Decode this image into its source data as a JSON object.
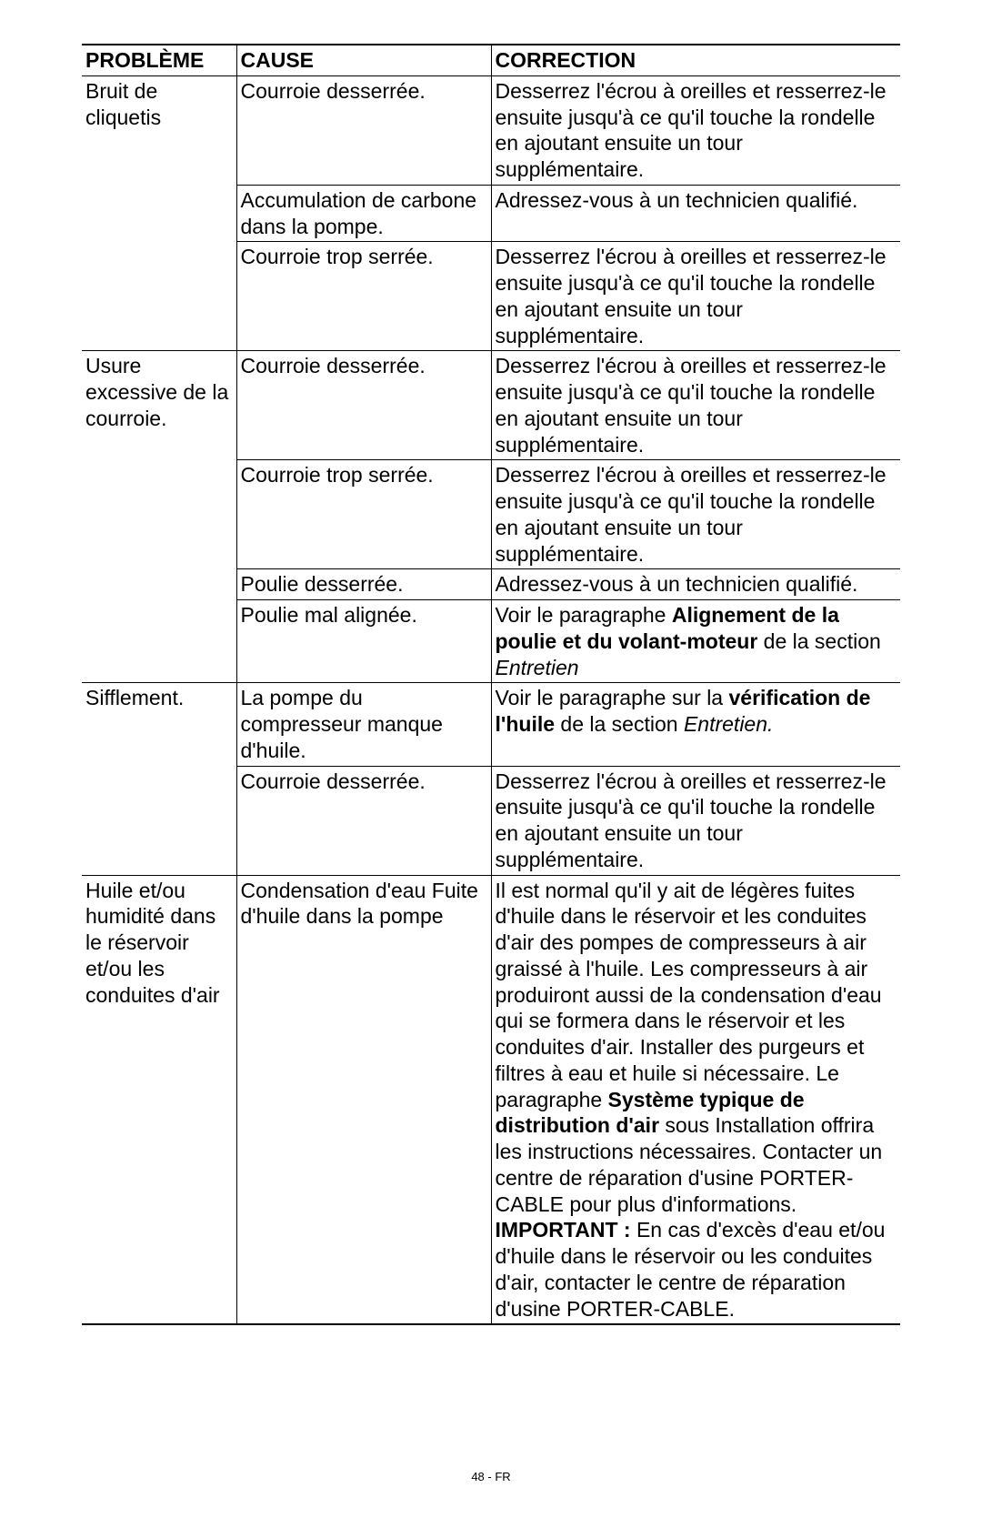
{
  "headers": {
    "problem": "PROBLÈME",
    "cause": "CAUSE",
    "correction": "CORRECTION"
  },
  "footer": "48 - FR",
  "rows": {
    "r1": {
      "problem": "Bruit de cliquetis",
      "cause": "Courroie desserrée.",
      "correction": "Desserrez l'écrou à oreilles et resserrez-le ensuite jusqu'à ce qu'il touche la rondelle en ajoutant ensuite un tour supplémentaire."
    },
    "r2": {
      "cause": "Accumulation de carbone dans la pompe.",
      "correction": "Adressez-vous à un technicien qualifié."
    },
    "r3": {
      "cause": "Courroie trop serrée.",
      "correction": "Desserrez l'écrou à oreilles et resserrez-le ensuite jusqu'à ce qu'il touche la rondelle en ajoutant ensuite un tour supplémentaire."
    },
    "r4": {
      "problem": "Usure excessive de la courroie.",
      "cause": "Courroie desserrée.",
      "correction": "Desserrez l'écrou à oreilles et resserrez-le ensuite jusqu'à ce qu'il touche la rondelle en ajoutant ensuite un tour supplémentaire."
    },
    "r5": {
      "cause": "Courroie trop serrée.",
      "correction": "Desserrez l'écrou à oreilles et resserrez-le ensuite jusqu'à ce qu'il touche la rondelle en ajoutant ensuite un tour supplémentaire."
    },
    "r6": {
      "cause": "Poulie desserrée.",
      "correction": "Adressez-vous à un technicien qualifié."
    },
    "r7": {
      "cause": "Poulie mal alignée.",
      "corr_prefix": "Voir le paragraphe ",
      "corr_bold": "Alignement de la poulie et du volant-moteur",
      "corr_mid": " de la section ",
      "corr_italic": "Entretien"
    },
    "r8": {
      "problem": "Sifflement.",
      "cause": "La pompe du compresseur manque d'huile.",
      "corr_prefix": "Voir le paragraphe sur la ",
      "corr_bold": "vérification de l'huile",
      "corr_mid": " de la section ",
      "corr_italic": "Entretien."
    },
    "r9": {
      "cause": "Courroie desserrée.",
      "correction": "Desserrez l'écrou à oreilles et resserrez-le ensuite jusqu'à ce qu'il touche la rondelle en ajoutant ensuite un tour supplémentaire."
    },
    "r10": {
      "problem": "Huile et/ou humidité dans le réservoir et/ou les conduites d'air",
      "cause": "Condensation d'eau Fuite d'huile dans la pompe",
      "corr_a": "Il est normal qu'il y ait de légères fuites d'huile dans le réservoir et les conduites d'air des pompes de compresseurs à air graissé à l'huile. Les compresseurs à air produiront aussi de la condensation d'eau qui se formera dans le réservoir et les conduites d'air. Installer des purgeurs et filtres à eau et huile si nécessaire. Le paragraphe ",
      "corr_bold1": "Système typique de distribution d'air",
      "corr_b": " sous Installation offrira les instructions nécessaires. Contacter un centre de réparation d'usine PORTER-CABLE pour plus d'informations. ",
      "corr_bold2": "IMPORTANT :",
      "corr_c": " En cas d'excès d'eau et/ou d'huile dans le rés­ervoir ou les conduites d'air, contacter le centre de répara­tion d'usine PORTER-CABLE."
    }
  }
}
